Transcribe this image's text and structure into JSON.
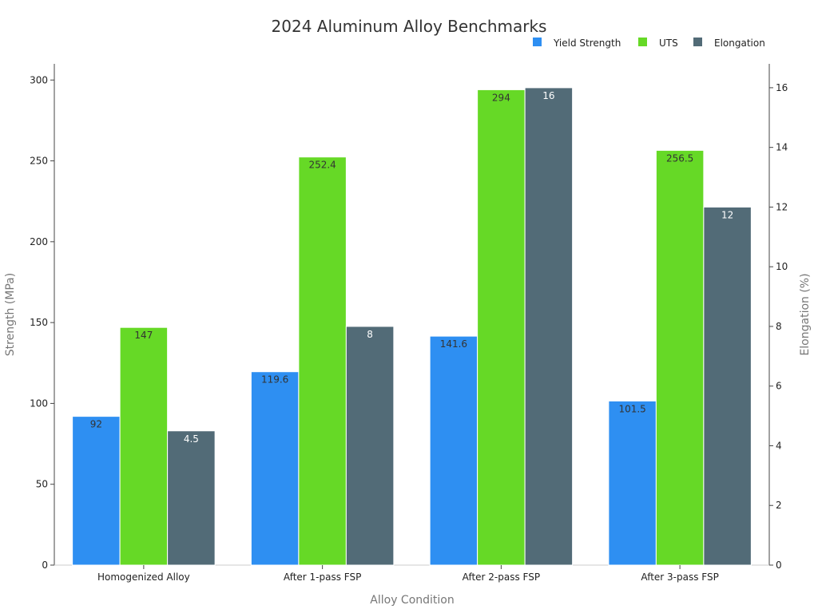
{
  "chart_data": {
    "type": "bar",
    "title": "2024 Aluminum Alloy Benchmarks",
    "xlabel": "Alloy Condition",
    "ylabel": "Strength (MPa)",
    "y2label": "Elongation (%)",
    "categories": [
      "Homogenized Alloy",
      "After 1-pass FSP",
      "After 2-pass FSP",
      "After 3-pass FSP"
    ],
    "ylim": [
      0,
      310
    ],
    "y2lim": [
      0,
      16.8
    ],
    "yticks": [
      0,
      50,
      100,
      150,
      200,
      250,
      300
    ],
    "y2ticks": [
      0,
      2,
      4,
      6,
      8,
      10,
      12,
      14,
      16
    ],
    "legend_position": "top-right",
    "grid": false,
    "series": [
      {
        "name": "Yield Strength",
        "axis": "left",
        "color": "#2e8ff2",
        "label_color": "#333333",
        "values": [
          92,
          119.6,
          141.6,
          101.5
        ],
        "labels": [
          "92",
          "119.6",
          "141.6",
          "101.5"
        ]
      },
      {
        "name": "UTS",
        "axis": "left",
        "color": "#66d926",
        "label_color": "#333333",
        "values": [
          147,
          252.4,
          294,
          256.5
        ],
        "labels": [
          "147",
          "252.4",
          "294",
          "256.5"
        ]
      },
      {
        "name": "Elongation",
        "axis": "right",
        "color": "#526b77",
        "label_color": "#ffffff",
        "values": [
          4.5,
          8,
          16,
          12
        ],
        "labels": [
          "4.5",
          "8",
          "16",
          "12"
        ]
      }
    ]
  }
}
